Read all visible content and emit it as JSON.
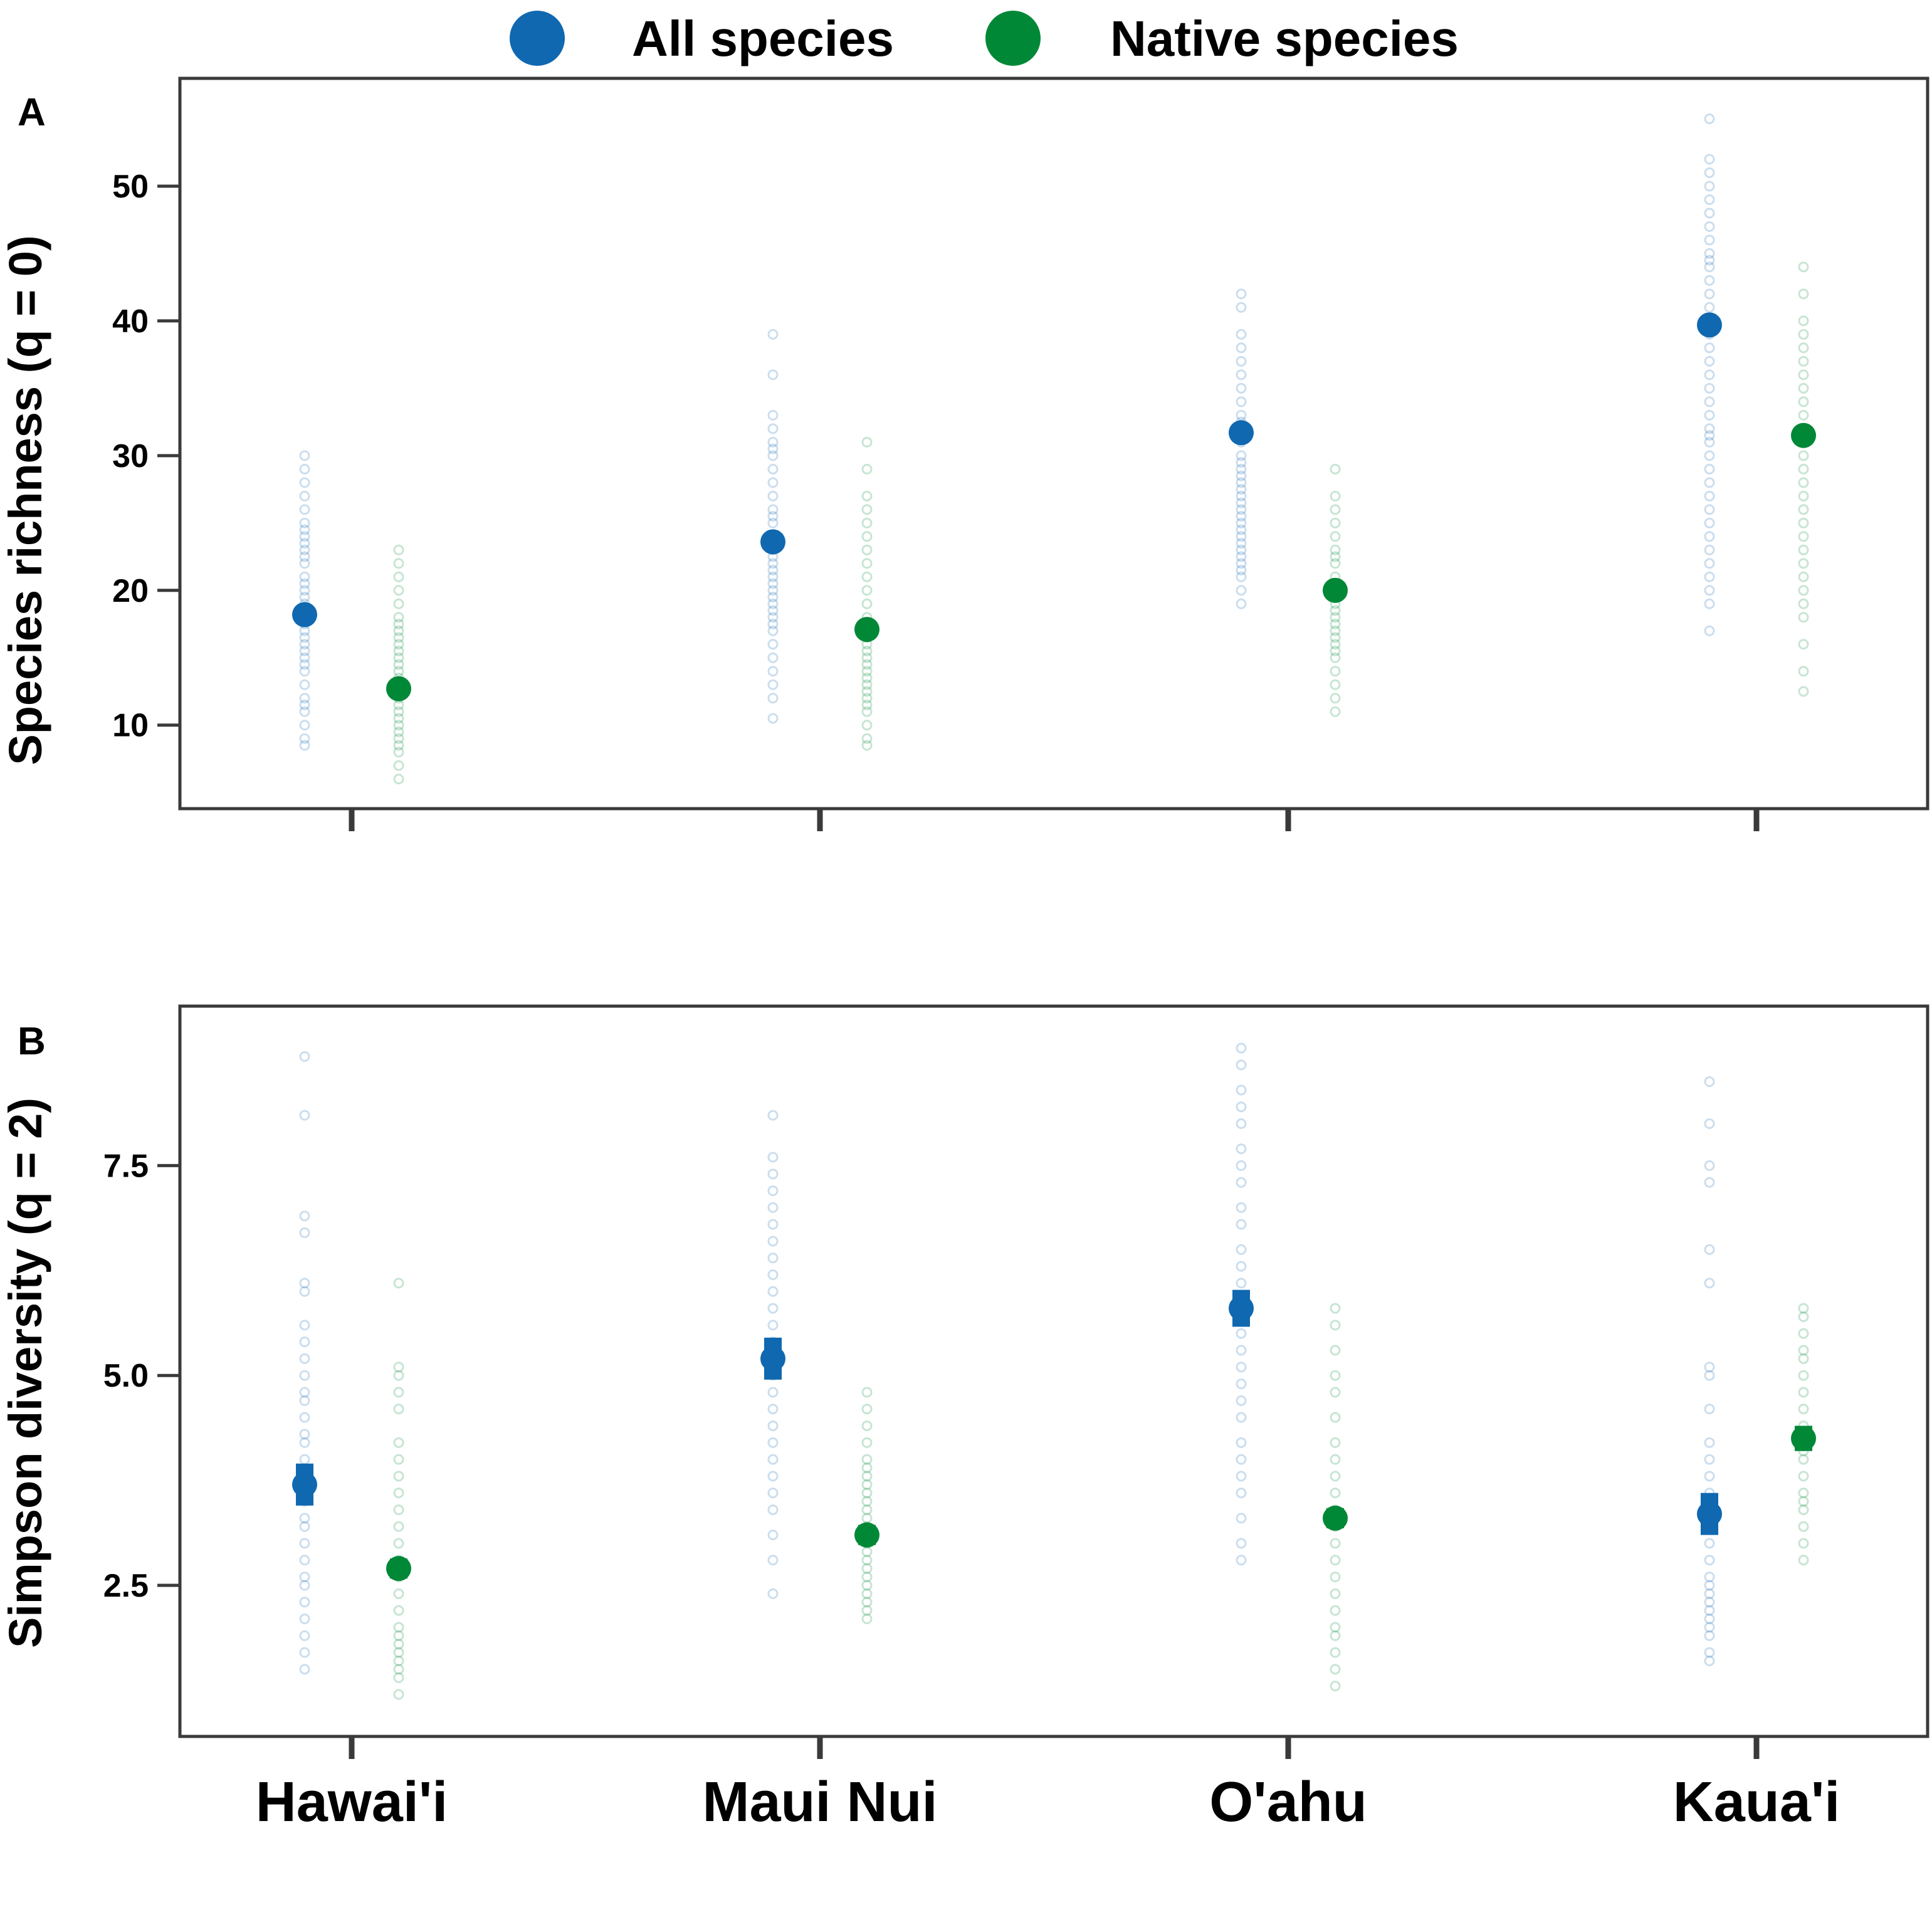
{
  "colors": {
    "all_species": "#1068B0",
    "native_species": "#008837"
  },
  "legend": [
    {
      "label": "All species",
      "color": "#1068B0"
    },
    {
      "label": "Native species",
      "color": "#008837"
    }
  ],
  "chart_data": [
    {
      "panel": "A",
      "type": "scatter",
      "ylabel": "Species richness (q = 0)",
      "ylim": [
        3.8,
        58.0
      ],
      "yticks": [
        10,
        20,
        30,
        40,
        50
      ],
      "ytick_labels": [
        "10",
        "20",
        "30",
        "40",
        "50"
      ],
      "categories": [
        "Hawai'i",
        "Maui Nui",
        "O'ahu",
        "Kaua'i"
      ],
      "series": [
        {
          "name": "All species",
          "color": "#1068B0",
          "means": [
            18.2,
            23.6,
            31.7,
            39.7
          ],
          "err": [
            0.5,
            0.5,
            0.6,
            0.6
          ],
          "samples": [
            [
              8.5,
              9,
              10,
              11,
              11.5,
              12,
              13,
              14,
              14.5,
              15,
              15.5,
              16,
              16.5,
              17,
              17.5,
              18,
              18.5,
              19,
              19.5,
              20,
              20.5,
              21,
              22,
              22.5,
              23,
              23.5,
              24,
              24.5,
              25,
              26,
              27,
              28,
              29,
              30
            ],
            [
              10.5,
              12,
              13,
              14,
              15,
              16,
              17,
              17.5,
              18,
              18.5,
              19,
              19.5,
              20,
              20.5,
              21,
              21.5,
              22,
              22.5,
              23,
              23.5,
              24,
              25,
              25.5,
              26,
              27,
              28,
              29,
              30,
              30.5,
              31,
              32,
              33,
              36,
              39
            ],
            [
              19,
              20,
              21,
              21.5,
              22,
              22.5,
              23,
              23.5,
              24,
              24.5,
              25,
              25.5,
              26,
              26.5,
              27,
              27.5,
              28,
              28.5,
              29,
              29.5,
              30,
              31,
              32,
              32.5,
              33,
              34,
              35,
              36,
              37,
              38,
              39,
              41,
              42
            ],
            [
              17,
              19,
              20,
              21,
              22,
              23,
              24,
              25,
              26,
              27,
              28,
              29,
              30,
              31,
              31.5,
              32,
              33,
              34,
              35,
              36,
              37,
              38,
              39,
              40,
              41,
              42,
              43,
              44,
              44.5,
              45,
              46,
              47,
              48,
              49,
              50,
              51,
              52,
              55
            ]
          ]
        },
        {
          "name": "Native species",
          "color": "#008837",
          "means": [
            12.7,
            17.1,
            20.0,
            31.5
          ],
          "err": [
            0.4,
            0.4,
            0.4,
            0.5
          ],
          "samples": [
            [
              6,
              7,
              8,
              8.5,
              9,
              9.5,
              10,
              10.5,
              11,
              11.5,
              12,
              12.5,
              13,
              13.5,
              14,
              14.5,
              15,
              15.5,
              16,
              16.5,
              17,
              17.5,
              18,
              19,
              20,
              21,
              22,
              23
            ],
            [
              8.5,
              9,
              10,
              11,
              11.5,
              12,
              12.5,
              13,
              13.5,
              14,
              14.5,
              15,
              15.5,
              16,
              16.5,
              17,
              18,
              19,
              20,
              21,
              22,
              23,
              24,
              25,
              26,
              27,
              29,
              31
            ],
            [
              11,
              12,
              13,
              14,
              15,
              15.5,
              16,
              16.5,
              17,
              17.5,
              18,
              18.5,
              19,
              19.5,
              20,
              21,
              22,
              22.5,
              23,
              24,
              25,
              26,
              27,
              29
            ],
            [
              12.5,
              14,
              16,
              18,
              19,
              20,
              21,
              22,
              23,
              24,
              25,
              26,
              27,
              28,
              29,
              30,
              31,
              32,
              33,
              34,
              35,
              36,
              37,
              38,
              39,
              40,
              42,
              44
            ]
          ]
        }
      ]
    },
    {
      "panel": "B",
      "type": "scatter",
      "ylabel": "Simpson diversity (q = 2)",
      "ylim": [
        0.7,
        9.4
      ],
      "yticks": [
        2.5,
        5.0,
        7.5
      ],
      "ytick_labels": [
        "2.5",
        "5.0",
        "7.5"
      ],
      "categories": [
        "Hawai'i",
        "Maui Nui",
        "O'ahu",
        "Kaua'i"
      ],
      "series": [
        {
          "name": "All species",
          "color": "#1068B0",
          "means": [
            3.7,
            5.2,
            5.8,
            3.35
          ],
          "err": [
            0.25,
            0.25,
            0.22,
            0.25
          ],
          "samples": [
            [
              1.5,
              1.7,
              1.9,
              2.1,
              2.3,
              2.5,
              2.6,
              2.8,
              3.0,
              3.2,
              3.3,
              3.5,
              3.6,
              3.8,
              4.0,
              4.2,
              4.3,
              4.5,
              4.7,
              4.8,
              5.0,
              5.2,
              5.4,
              5.6,
              6.0,
              6.1,
              6.7,
              6.9,
              8.1,
              8.8
            ],
            [
              2.4,
              2.8,
              3.1,
              3.4,
              3.6,
              3.8,
              4.0,
              4.2,
              4.4,
              4.6,
              4.8,
              5.0,
              5.2,
              5.4,
              5.6,
              5.8,
              6.0,
              6.2,
              6.4,
              6.6,
              6.8,
              7.0,
              7.2,
              7.4,
              7.6,
              8.1
            ],
            [
              2.8,
              3.0,
              3.3,
              3.6,
              3.8,
              4.0,
              4.2,
              4.5,
              4.7,
              4.9,
              5.1,
              5.3,
              5.5,
              5.7,
              5.9,
              6.1,
              6.3,
              6.5,
              6.8,
              7.0,
              7.3,
              7.5,
              7.7,
              8.0,
              8.2,
              8.4,
              8.7,
              8.9
            ],
            [
              1.6,
              1.7,
              1.9,
              2.0,
              2.1,
              2.2,
              2.3,
              2.4,
              2.5,
              2.6,
              2.8,
              3.0,
              3.2,
              3.4,
              3.6,
              3.8,
              4.0,
              4.2,
              4.6,
              5.0,
              5.1,
              6.1,
              6.5,
              7.3,
              7.5,
              8.0,
              8.5
            ]
          ]
        },
        {
          "name": "Native species",
          "color": "#008837",
          "means": [
            2.7,
            3.1,
            3.3,
            4.25
          ],
          "err": [
            0.12,
            0.12,
            0.12,
            0.15
          ],
          "samples": [
            [
              1.2,
              1.4,
              1.5,
              1.6,
              1.7,
              1.8,
              1.9,
              2.0,
              2.2,
              2.4,
              2.6,
              2.8,
              3.0,
              3.2,
              3.4,
              3.6,
              3.8,
              4.0,
              4.2,
              4.6,
              4.8,
              5.0,
              5.1,
              6.1
            ],
            [
              2.1,
              2.2,
              2.3,
              2.4,
              2.5,
              2.6,
              2.7,
              2.8,
              2.9,
              3.0,
              3.1,
              3.2,
              3.3,
              3.4,
              3.5,
              3.6,
              3.7,
              3.8,
              3.9,
              4.0,
              4.2,
              4.4,
              4.6,
              4.8
            ],
            [
              1.3,
              1.5,
              1.7,
              1.9,
              2.0,
              2.2,
              2.4,
              2.6,
              2.8,
              3.0,
              3.2,
              3.4,
              3.6,
              3.8,
              4.0,
              4.2,
              4.5,
              4.8,
              5.0,
              5.3,
              5.6,
              5.8
            ],
            [
              2.8,
              3.0,
              3.2,
              3.4,
              3.5,
              3.6,
              3.8,
              4.0,
              4.1,
              4.2,
              4.3,
              4.4,
              4.6,
              4.8,
              5.0,
              5.2,
              5.3,
              5.5,
              5.7,
              5.8
            ]
          ]
        }
      ]
    }
  ]
}
